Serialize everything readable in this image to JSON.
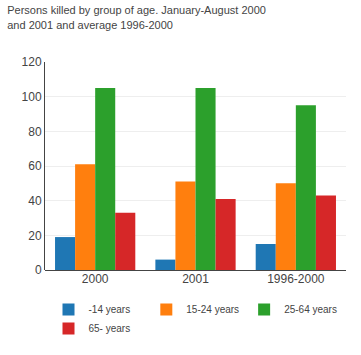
{
  "chart_data": {
    "type": "bar",
    "title": "Persons killed by group of age. January-August 2000\nand 2001 and average 1996-2000",
    "categories": [
      "2000",
      "2001",
      "1996-2000"
    ],
    "series": [
      {
        "name": "-14 years",
        "values": [
          19,
          6,
          15
        ]
      },
      {
        "name": "15-24 years",
        "values": [
          61,
          51,
          50
        ]
      },
      {
        "name": "25-64 years",
        "values": [
          105,
          105,
          95
        ]
      },
      {
        "name": "65- years",
        "values": [
          33,
          41,
          43
        ]
      }
    ],
    "ylim": [
      0,
      120
    ],
    "yticks": [
      0,
      20,
      40,
      60,
      80,
      100,
      120
    ],
    "grid": true,
    "legend": "bottom"
  }
}
